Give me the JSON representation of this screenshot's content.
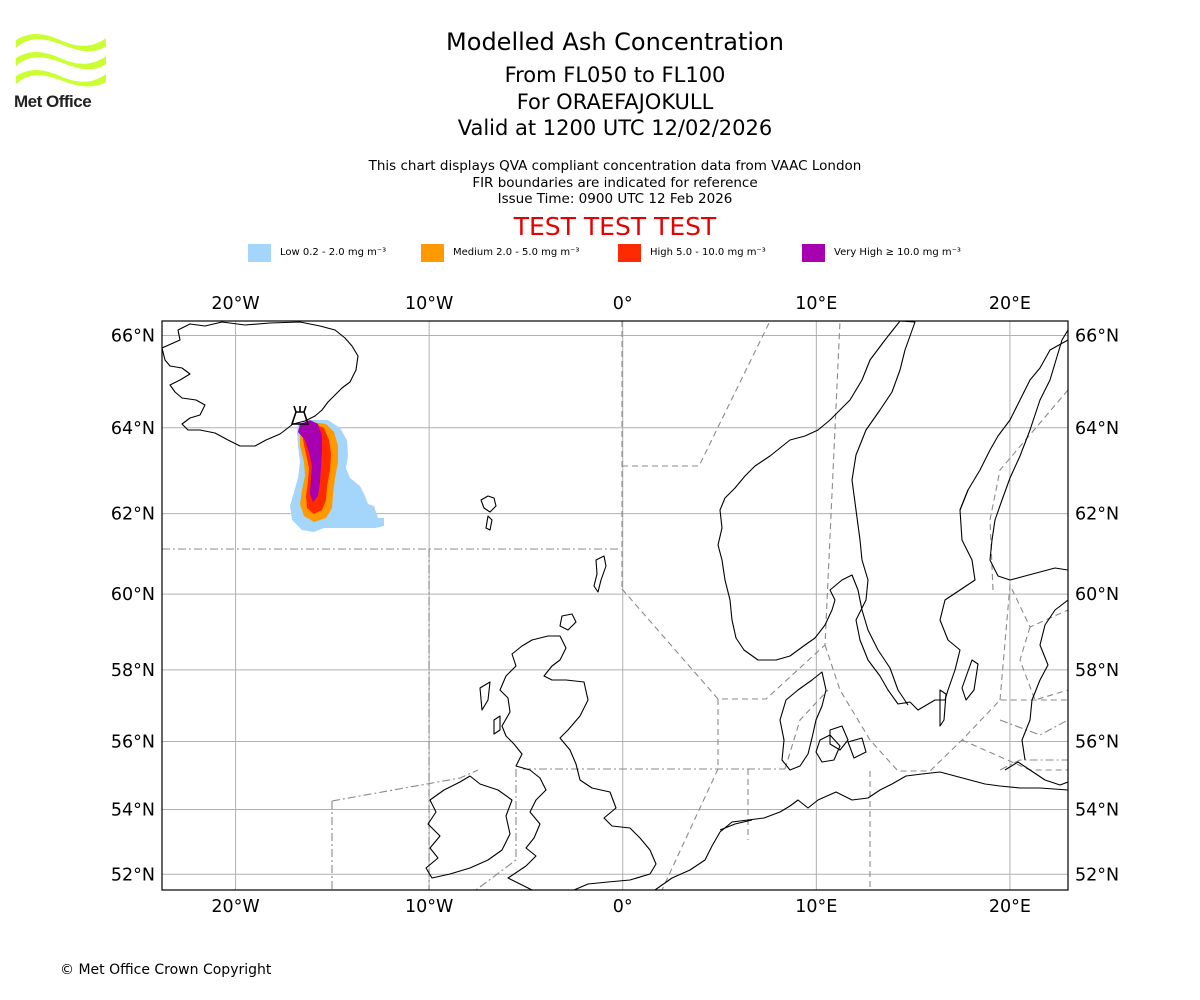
{
  "logo": {
    "text": "Met Office",
    "color": "#ccff33"
  },
  "header": {
    "title": "Modelled Ash Concentration",
    "level": "From FL050 to FL100",
    "volcano": "For ORAEFAJOKULL",
    "valid": "Valid at 1200 UTC 12/02/2026",
    "note1": "This chart displays QVA compliant concentration data from VAAC London",
    "note2": "FIR boundaries are indicated for reference",
    "issue": "Issue Time: 0900 UTC 12 Feb 2026",
    "test_banner": "TEST TEST TEST"
  },
  "legend": [
    {
      "label": "Low 0.2 - 2.0 mg m⁻³",
      "color": "#a4d5fb"
    },
    {
      "label": "Medium 2.0 - 5.0 mg m⁻³",
      "color": "#ff9900"
    },
    {
      "label": "High 5.0 - 10.0 mg m⁻³",
      "color": "#ff2a00"
    },
    {
      "label": "Very High  ≥  10.0 mg m⁻³",
      "color": "#a600b0"
    }
  ],
  "map": {
    "lon_labels": [
      "20°W",
      "10°W",
      "0°",
      "10°E",
      "20°E"
    ],
    "lat_labels": [
      "66°N",
      "64°N",
      "62°N",
      "60°N",
      "58°N",
      "56°N",
      "54°N",
      "52°N"
    ],
    "lon_values": [
      -20,
      -10,
      0,
      10,
      20
    ],
    "lat_values": [
      66,
      64,
      62,
      60,
      58,
      56,
      54,
      52
    ],
    "lon_range": [
      -23.8,
      23.0
    ],
    "lat_range": [
      51.5,
      66.3
    ],
    "volcano_location": {
      "lat": 64.0,
      "lon": -16.65
    }
  },
  "footer": {
    "copyright": "© Met Office Crown Copyright"
  }
}
